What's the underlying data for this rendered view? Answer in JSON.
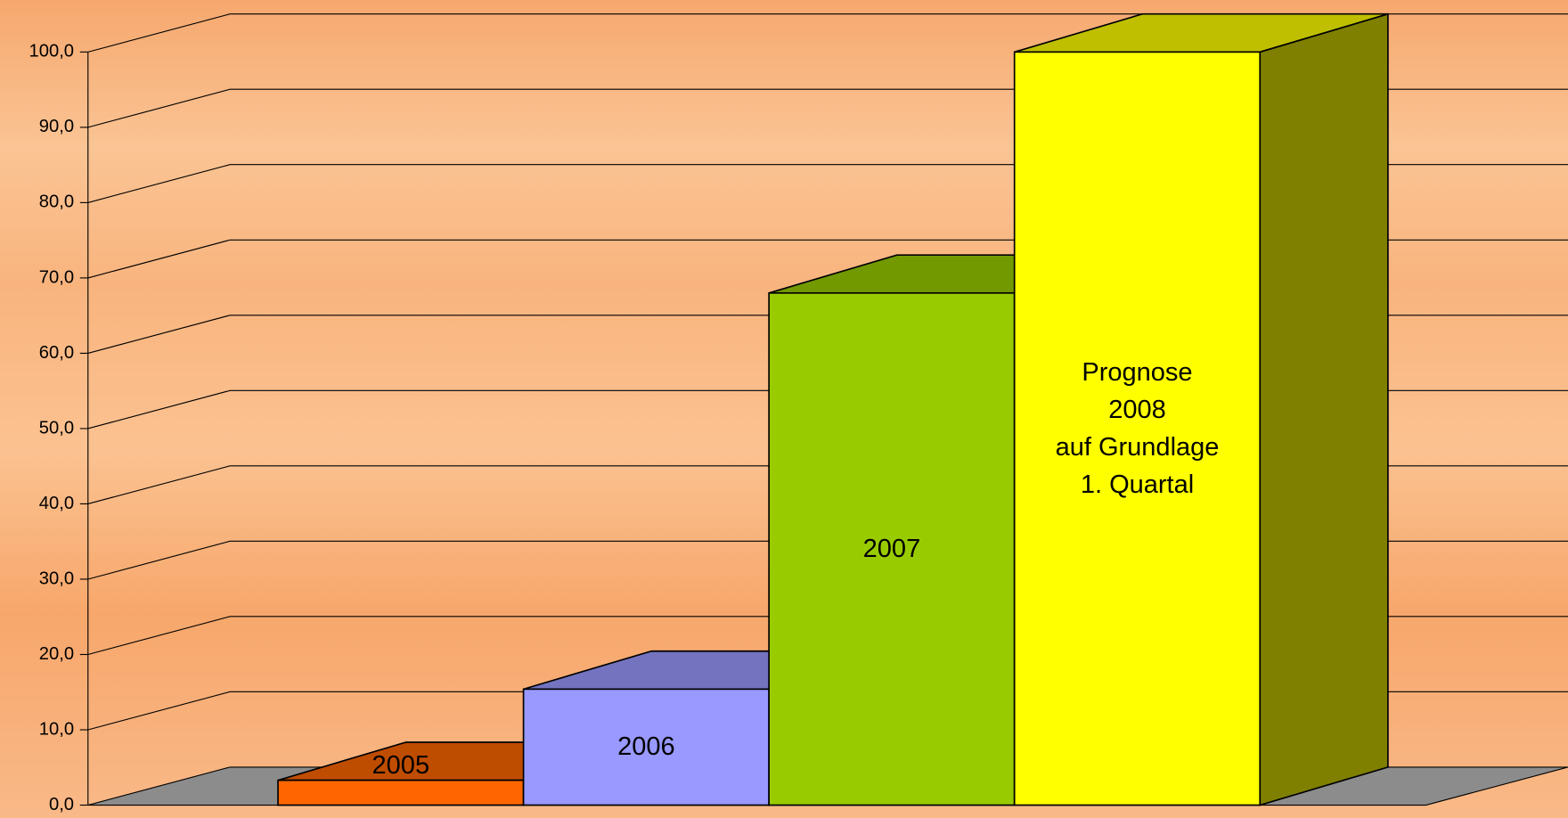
{
  "chart_data": {
    "type": "bar3d",
    "categories": [
      "2005",
      "2006",
      "2007",
      "Prognose\n2008\nauf Grundlage\n1. Quartal"
    ],
    "values": [
      3.3,
      15.4,
      68.0,
      100.0
    ],
    "colors": [
      "#ff6600",
      "#9999ff",
      "#99cc00",
      "#ffff00"
    ],
    "ylim": [
      0,
      100
    ],
    "yticks": [
      {
        "value": 0,
        "label": "0,0"
      },
      {
        "value": 10,
        "label": "10,0"
      },
      {
        "value": 20,
        "label": "20,0"
      },
      {
        "value": 30,
        "label": "30,0"
      },
      {
        "value": 40,
        "label": "40,0"
      },
      {
        "value": 50,
        "label": "50,0"
      },
      {
        "value": 60,
        "label": "60,0"
      },
      {
        "value": 70,
        "label": "70,0"
      },
      {
        "value": 80,
        "label": "80,0"
      },
      {
        "value": 90,
        "label": "90,0"
      },
      {
        "value": 100,
        "label": "100,0"
      }
    ],
    "grid": true
  }
}
